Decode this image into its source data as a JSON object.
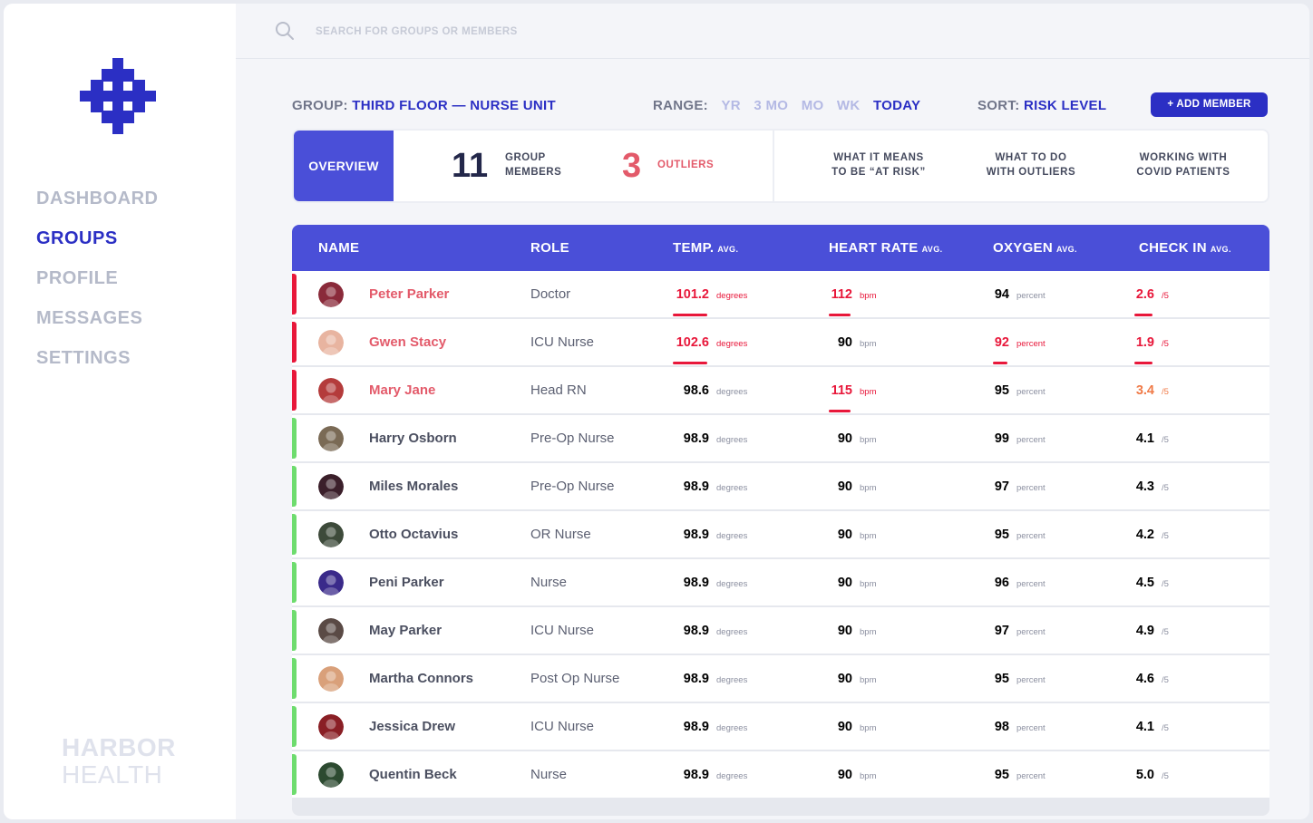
{
  "search": {
    "placeholder": "SEARCH FOR GROUPS OR MEMBERS"
  },
  "sidebar": {
    "items": [
      {
        "label": "DASHBOARD",
        "active": false
      },
      {
        "label": "GROUPS",
        "active": true
      },
      {
        "label": "PROFILE",
        "active": false
      },
      {
        "label": "MESSAGES",
        "active": false
      },
      {
        "label": "SETTINGS",
        "active": false
      }
    ],
    "brand_line1": "HARBOR",
    "brand_line2": "HEALTH"
  },
  "controls": {
    "group_label": "GROUP:",
    "group_value": "THIRD FLOOR — NURSE UNIT",
    "range_label": "RANGE:",
    "range_options": [
      "YR",
      "3 MO",
      "MO",
      "WK",
      "TODAY"
    ],
    "range_selected": "TODAY",
    "sort_label": "SORT:",
    "sort_value": "RISK LEVEL",
    "add_member_label": "+ ADD MEMBER"
  },
  "overview": {
    "tab_label": "OVERVIEW",
    "members_count": "11",
    "members_label_1": "GROUP",
    "members_label_2": "MEMBERS",
    "outliers_count": "3",
    "outliers_label": "OUTLIERS",
    "links": [
      {
        "line1": "WHAT IT MEANS",
        "line2": "TO BE “AT RISK”"
      },
      {
        "line1": "WHAT TO DO",
        "line2": "WITH OUTLIERS"
      },
      {
        "line1": "WORKING WITH",
        "line2": "COVID PATIENTS"
      }
    ]
  },
  "table": {
    "headers": {
      "name": "NAME",
      "role": "ROLE",
      "temp": "TEMP.",
      "heart": "HEART RATE",
      "oxygen": "OXYGEN",
      "checkin": "CHECK IN",
      "avg": "AVG."
    },
    "units": {
      "temp": "degrees",
      "heart": "bpm",
      "oxygen": "percent",
      "checkin": "/5"
    },
    "rows": [
      {
        "name": "Peter Parker",
        "role": "Doctor",
        "risk": "high",
        "temp": "101.2",
        "temp_status": "alert",
        "heart": "112",
        "heart_status": "alert",
        "oxygen": "94",
        "oxygen_status": "normal",
        "checkin": "2.6",
        "checkin_status": "alert",
        "avatar_color": "#8a2a3a"
      },
      {
        "name": "Gwen Stacy",
        "role": "ICU Nurse",
        "risk": "high",
        "temp": "102.6",
        "temp_status": "alert",
        "heart": "90",
        "heart_status": "normal",
        "oxygen": "92",
        "oxygen_status": "alert",
        "checkin": "1.9",
        "checkin_status": "alert",
        "avatar_color": "#e8b4a0"
      },
      {
        "name": "Mary Jane",
        "role": "Head RN",
        "risk": "high",
        "temp": "98.6",
        "temp_status": "normal",
        "heart": "115",
        "heart_status": "alert",
        "oxygen": "95",
        "oxygen_status": "normal",
        "checkin": "3.4",
        "checkin_status": "warn",
        "avatar_color": "#b43b3b"
      },
      {
        "name": "Harry Osborn",
        "role": "Pre-Op Nurse",
        "risk": "low",
        "temp": "98.9",
        "temp_status": "normal",
        "heart": "90",
        "heart_status": "normal",
        "oxygen": "99",
        "oxygen_status": "normal",
        "checkin": "4.1",
        "checkin_status": "normal",
        "avatar_color": "#7a6a55"
      },
      {
        "name": "Miles Morales",
        "role": "Pre-Op Nurse",
        "risk": "low",
        "temp": "98.9",
        "temp_status": "normal",
        "heart": "90",
        "heart_status": "normal",
        "oxygen": "97",
        "oxygen_status": "normal",
        "checkin": "4.3",
        "checkin_status": "normal",
        "avatar_color": "#3b1f2a"
      },
      {
        "name": "Otto Octavius",
        "role": "OR Nurse",
        "risk": "low",
        "temp": "98.9",
        "temp_status": "normal",
        "heart": "90",
        "heart_status": "normal",
        "oxygen": "95",
        "oxygen_status": "normal",
        "checkin": "4.2",
        "checkin_status": "normal",
        "avatar_color": "#3d4a3a"
      },
      {
        "name": "Peni Parker",
        "role": "Nurse",
        "risk": "low",
        "temp": "98.9",
        "temp_status": "normal",
        "heart": "90",
        "heart_status": "normal",
        "oxygen": "96",
        "oxygen_status": "normal",
        "checkin": "4.5",
        "checkin_status": "normal",
        "avatar_color": "#3a2a8a"
      },
      {
        "name": "May Parker",
        "role": "ICU Nurse",
        "risk": "low",
        "temp": "98.9",
        "temp_status": "normal",
        "heart": "90",
        "heart_status": "normal",
        "oxygen": "97",
        "oxygen_status": "normal",
        "checkin": "4.9",
        "checkin_status": "normal",
        "avatar_color": "#5a4a45"
      },
      {
        "name": "Martha Connors",
        "role": "Post Op Nurse",
        "risk": "low",
        "temp": "98.9",
        "temp_status": "normal",
        "heart": "90",
        "heart_status": "normal",
        "oxygen": "95",
        "oxygen_status": "normal",
        "checkin": "4.6",
        "checkin_status": "normal",
        "avatar_color": "#d9a07a"
      },
      {
        "name": "Jessica Drew",
        "role": "ICU Nurse",
        "risk": "low",
        "temp": "98.9",
        "temp_status": "normal",
        "heart": "90",
        "heart_status": "normal",
        "oxygen": "98",
        "oxygen_status": "normal",
        "checkin": "4.1",
        "checkin_status": "normal",
        "avatar_color": "#8a1f25"
      },
      {
        "name": "Quentin Beck",
        "role": "Nurse",
        "risk": "low",
        "temp": "98.9",
        "temp_status": "normal",
        "heart": "90",
        "heart_status": "normal",
        "oxygen": "95",
        "oxygen_status": "normal",
        "checkin": "5.0",
        "checkin_status": "normal",
        "avatar_color": "#2c4a30"
      }
    ]
  },
  "colors": {
    "accent": "#2b2fc4",
    "header": "#4a4fd8",
    "alert": "#e8173a",
    "warn": "#f07a47",
    "risk_high": "#e8173a",
    "risk_low": "#6edc6e"
  },
  "icons": {
    "search": "search-icon",
    "logo": "harbor-logo-icon",
    "avatar": "avatar"
  }
}
